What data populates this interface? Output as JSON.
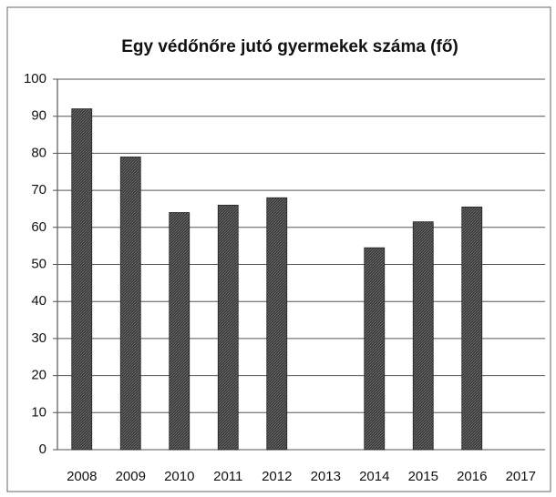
{
  "chart_data": {
    "type": "bar",
    "title": "Egy védőnőre jutó gyermekek száma (fő)",
    "categories": [
      "2008",
      "2009",
      "2010",
      "2011",
      "2012",
      "2013",
      "2014",
      "2015",
      "2016",
      "2017"
    ],
    "values": [
      92,
      79,
      64,
      66,
      68,
      null,
      54.5,
      61.5,
      65.5,
      null
    ],
    "color": "#444444",
    "ylim": [
      0,
      100
    ],
    "yticks": [
      0,
      10,
      20,
      30,
      40,
      50,
      60,
      70,
      80,
      90,
      100
    ],
    "grid": true
  }
}
